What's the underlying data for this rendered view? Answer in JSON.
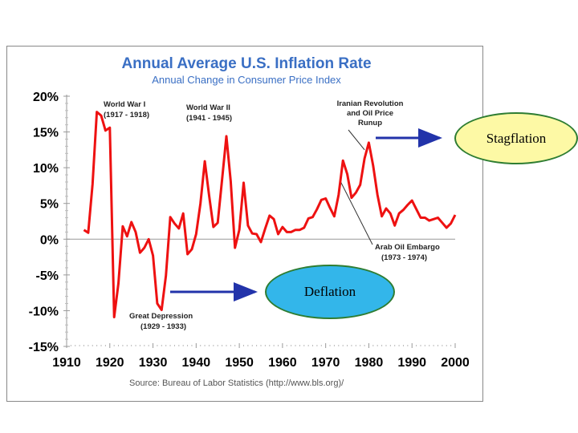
{
  "chart_data": {
    "type": "line",
    "title": "Annual Average U.S. Inflation Rate",
    "subtitle": "Annual Change in Consumer Price Index",
    "source": "Source: Bureau of Labor Statistics (http://www.bls.org)/",
    "xlabel": "",
    "ylabel": "",
    "xlim": [
      1910,
      2000
    ],
    "ylim": [
      -15,
      20
    ],
    "x_ticks": [
      "1910",
      "1920",
      "1930",
      "1940",
      "1950",
      "1960",
      "1970",
      "1980",
      "1990",
      "2000"
    ],
    "y_ticks": [
      "20%",
      "15%",
      "10%",
      "5%",
      "0%",
      "-5%",
      "-10%",
      "-15%"
    ],
    "series": [
      {
        "color": "#ee1111",
        "x": [
          1914,
          1915,
          1916,
          1917,
          1918,
          1919,
          1920,
          1921,
          1922,
          1923,
          1924,
          1925,
          1926,
          1927,
          1928,
          1929,
          1930,
          1931,
          1932,
          1933,
          1934,
          1935,
          1936,
          1937,
          1938,
          1939,
          1940,
          1941,
          1942,
          1943,
          1944,
          1945,
          1946,
          1947,
          1948,
          1949,
          1950,
          1951,
          1952,
          1953,
          1954,
          1955,
          1956,
          1957,
          1958,
          1959,
          1960,
          1961,
          1962,
          1963,
          1964,
          1965,
          1966,
          1967,
          1968,
          1969,
          1970,
          1971,
          1972,
          1973,
          1974,
          1975,
          1976,
          1977,
          1978,
          1979,
          1980,
          1981,
          1982,
          1983,
          1984,
          1985,
          1986,
          1987,
          1988,
          1989,
          1990,
          1991,
          1992,
          1993,
          1994,
          1995,
          1996,
          1997,
          1998,
          1999,
          2000
        ],
        "y": [
          1.3,
          0.9,
          7.7,
          17.8,
          17.3,
          15.2,
          15.6,
          -10.9,
          -6.2,
          1.8,
          0.4,
          2.4,
          1.0,
          -1.9,
          -1.2,
          0.0,
          -2.3,
          -9.0,
          -9.9,
          -5.1,
          3.1,
          2.2,
          1.5,
          3.6,
          -2.1,
          -1.4,
          0.7,
          5.0,
          10.9,
          6.1,
          1.7,
          2.3,
          8.3,
          14.4,
          8.1,
          -1.2,
          1.3,
          7.9,
          1.9,
          0.8,
          0.7,
          -0.4,
          1.5,
          3.3,
          2.8,
          0.7,
          1.7,
          1.0,
          1.0,
          1.3,
          1.3,
          1.6,
          2.9,
          3.1,
          4.2,
          5.5,
          5.7,
          4.4,
          3.2,
          6.2,
          11.0,
          9.1,
          5.8,
          6.5,
          7.6,
          11.3,
          13.5,
          10.3,
          6.2,
          3.2,
          4.3,
          3.6,
          1.9,
          3.6,
          4.1,
          4.8,
          5.4,
          4.2,
          3.0,
          3.0,
          2.6,
          2.8,
          3.0,
          2.3,
          1.6,
          2.2,
          3.4
        ]
      }
    ],
    "annotations": [
      {
        "label": "World War I",
        "sub": "(1917 - 1918)"
      },
      {
        "label": "World War II",
        "sub": "(1941 - 1945)"
      },
      {
        "label": "Iranian Revolution",
        "line2": "and Oil Price",
        "line3": "Runup"
      },
      {
        "label": "Arab Oil Embargo",
        "sub": "(1973 - 1974)"
      },
      {
        "label": "Great Depression",
        "sub": "(1929 - 1933)"
      }
    ],
    "grid": false,
    "zero_line": true
  },
  "callouts": {
    "stagflation": "Stagflation",
    "deflation": "Deflation"
  },
  "colors": {
    "title": "#3a6fc4",
    "line": "#ee1111",
    "arrow": "#2233aa",
    "stagflation_fill": "#fdf9a5",
    "deflation_fill": "#33b6ea",
    "bubble_border": "#2e7d32"
  }
}
